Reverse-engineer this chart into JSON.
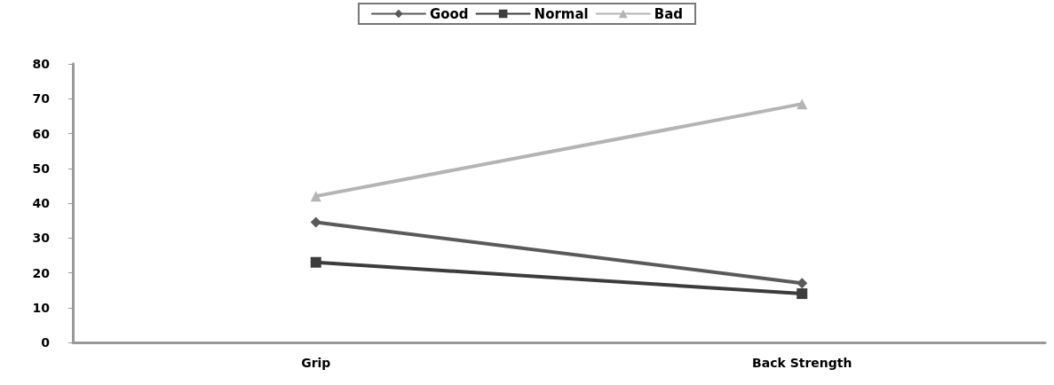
{
  "chart_data": {
    "type": "line",
    "categories": [
      "Grip",
      "Back Strength"
    ],
    "series": [
      {
        "name": "Good",
        "color": "#5a5a5a",
        "marker": "diamond",
        "values": [
          34.5,
          17
        ]
      },
      {
        "name": "Normal",
        "color": "#3c3c3c",
        "marker": "square",
        "values": [
          23,
          14
        ]
      },
      {
        "name": "Bad",
        "color": "#b4b4b4",
        "marker": "triangle",
        "values": [
          42,
          68.5
        ]
      }
    ],
    "ylim": [
      0,
      80
    ],
    "yticks": [
      0,
      10,
      20,
      30,
      40,
      50,
      60,
      70,
      80
    ],
    "grid": false,
    "legend": "top",
    "line_style": "solid"
  }
}
